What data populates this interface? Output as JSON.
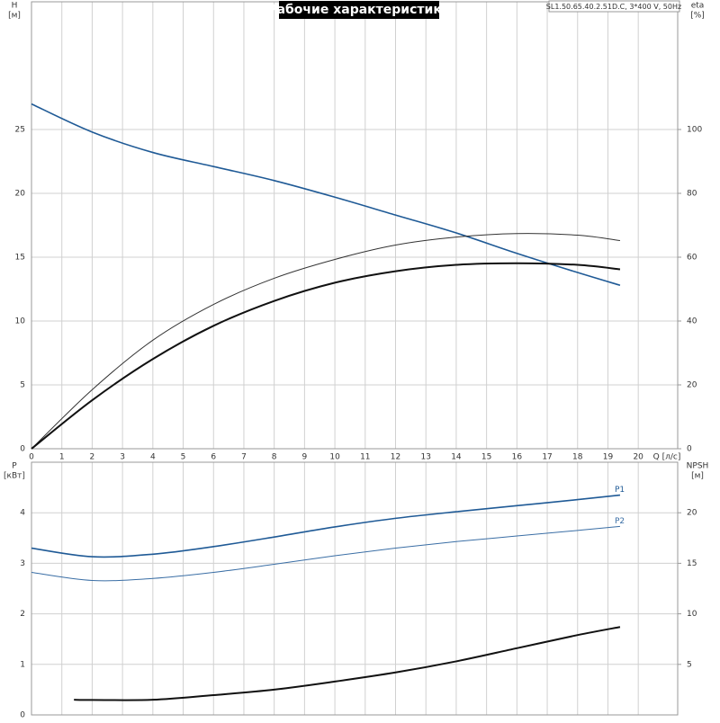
{
  "title": "Рабочие характеристики",
  "model": "SL1.50.65.40.2.51D.C, 3*400 V, 50Hz",
  "chart_data": [
    {
      "type": "line",
      "y_label": "H",
      "y_unit": "[м]",
      "y2_label": "eta",
      "y2_unit": "[%]",
      "x_label": "Q [л/с]",
      "xlim": [
        0,
        21.3
      ],
      "xticks": [
        0,
        1,
        2,
        3,
        4,
        5,
        6,
        7,
        8,
        9,
        10,
        11,
        12,
        13,
        14,
        15,
        16,
        17,
        18,
        19,
        20
      ],
      "ylim": [
        0,
        35
      ],
      "yticks": [
        0,
        5,
        10,
        15,
        20,
        25
      ],
      "y2lim": [
        0,
        140
      ],
      "y2ticks": [
        0,
        20,
        40,
        60,
        80,
        100
      ],
      "grid": true,
      "series": [
        {
          "color": "#1f5a96",
          "width": 1.6,
          "x": [
            0,
            2,
            4,
            6,
            8,
            10,
            12,
            14,
            16,
            18,
            19.4
          ],
          "values": [
            27,
            24.8,
            23.2,
            22.1,
            21.0,
            19.7,
            18.3,
            16.9,
            15.3,
            13.8,
            12.8
          ]
        },
        {
          "color": "#333333",
          "width": 1,
          "axis": "y2",
          "x": [
            0,
            2,
            4,
            6,
            8,
            10,
            12,
            14,
            16,
            18,
            19.4
          ],
          "values": [
            0,
            18.5,
            34,
            45.2,
            53.4,
            59.3,
            63.8,
            66.3,
            67.4,
            66.9,
            65.2
          ]
        },
        {
          "color": "#111111",
          "width": 2,
          "axis": "y2",
          "x": [
            0,
            2,
            4,
            6,
            8,
            10,
            12,
            14,
            16,
            18,
            19.4
          ],
          "values": [
            0,
            15.2,
            28.1,
            38.5,
            46.3,
            52,
            55.6,
            57.6,
            58.1,
            57.6,
            56.2
          ]
        }
      ]
    },
    {
      "type": "line",
      "y_label": "P",
      "y_unit": "[кВт]",
      "y2_label": "NPSH",
      "y2_unit": "[м]",
      "xlim": [
        0,
        21.3
      ],
      "ylim": [
        0,
        5
      ],
      "yticks": [
        0,
        1,
        2,
        3,
        4
      ],
      "y2lim": [
        0,
        25
      ],
      "y2ticks": [
        5,
        10,
        15,
        20
      ],
      "grid": true,
      "series": [
        {
          "name": "P1",
          "color": "#1f5a96",
          "width": 1.6,
          "x": [
            0,
            2,
            4,
            6,
            8,
            10,
            12,
            14,
            16,
            18,
            19.4
          ],
          "values": [
            3.3,
            3.13,
            3.18,
            3.33,
            3.52,
            3.72,
            3.89,
            4.02,
            4.14,
            4.26,
            4.35
          ]
        },
        {
          "name": "P2",
          "color": "#3a6ea5",
          "width": 1,
          "x": [
            0,
            2,
            4,
            6,
            8,
            10,
            12,
            14,
            16,
            18,
            19.4
          ],
          "values": [
            2.82,
            2.66,
            2.7,
            2.82,
            2.98,
            3.15,
            3.3,
            3.43,
            3.54,
            3.65,
            3.73
          ]
        },
        {
          "color": "#111111",
          "width": 2,
          "axis": "y2",
          "x": [
            1.4,
            2,
            4,
            6,
            8,
            10,
            12,
            14,
            16,
            18,
            19.4
          ],
          "values": [
            1.5,
            1.48,
            1.5,
            1.96,
            2.5,
            3.3,
            4.2,
            5.3,
            6.6,
            7.9,
            8.7
          ]
        }
      ]
    }
  ]
}
